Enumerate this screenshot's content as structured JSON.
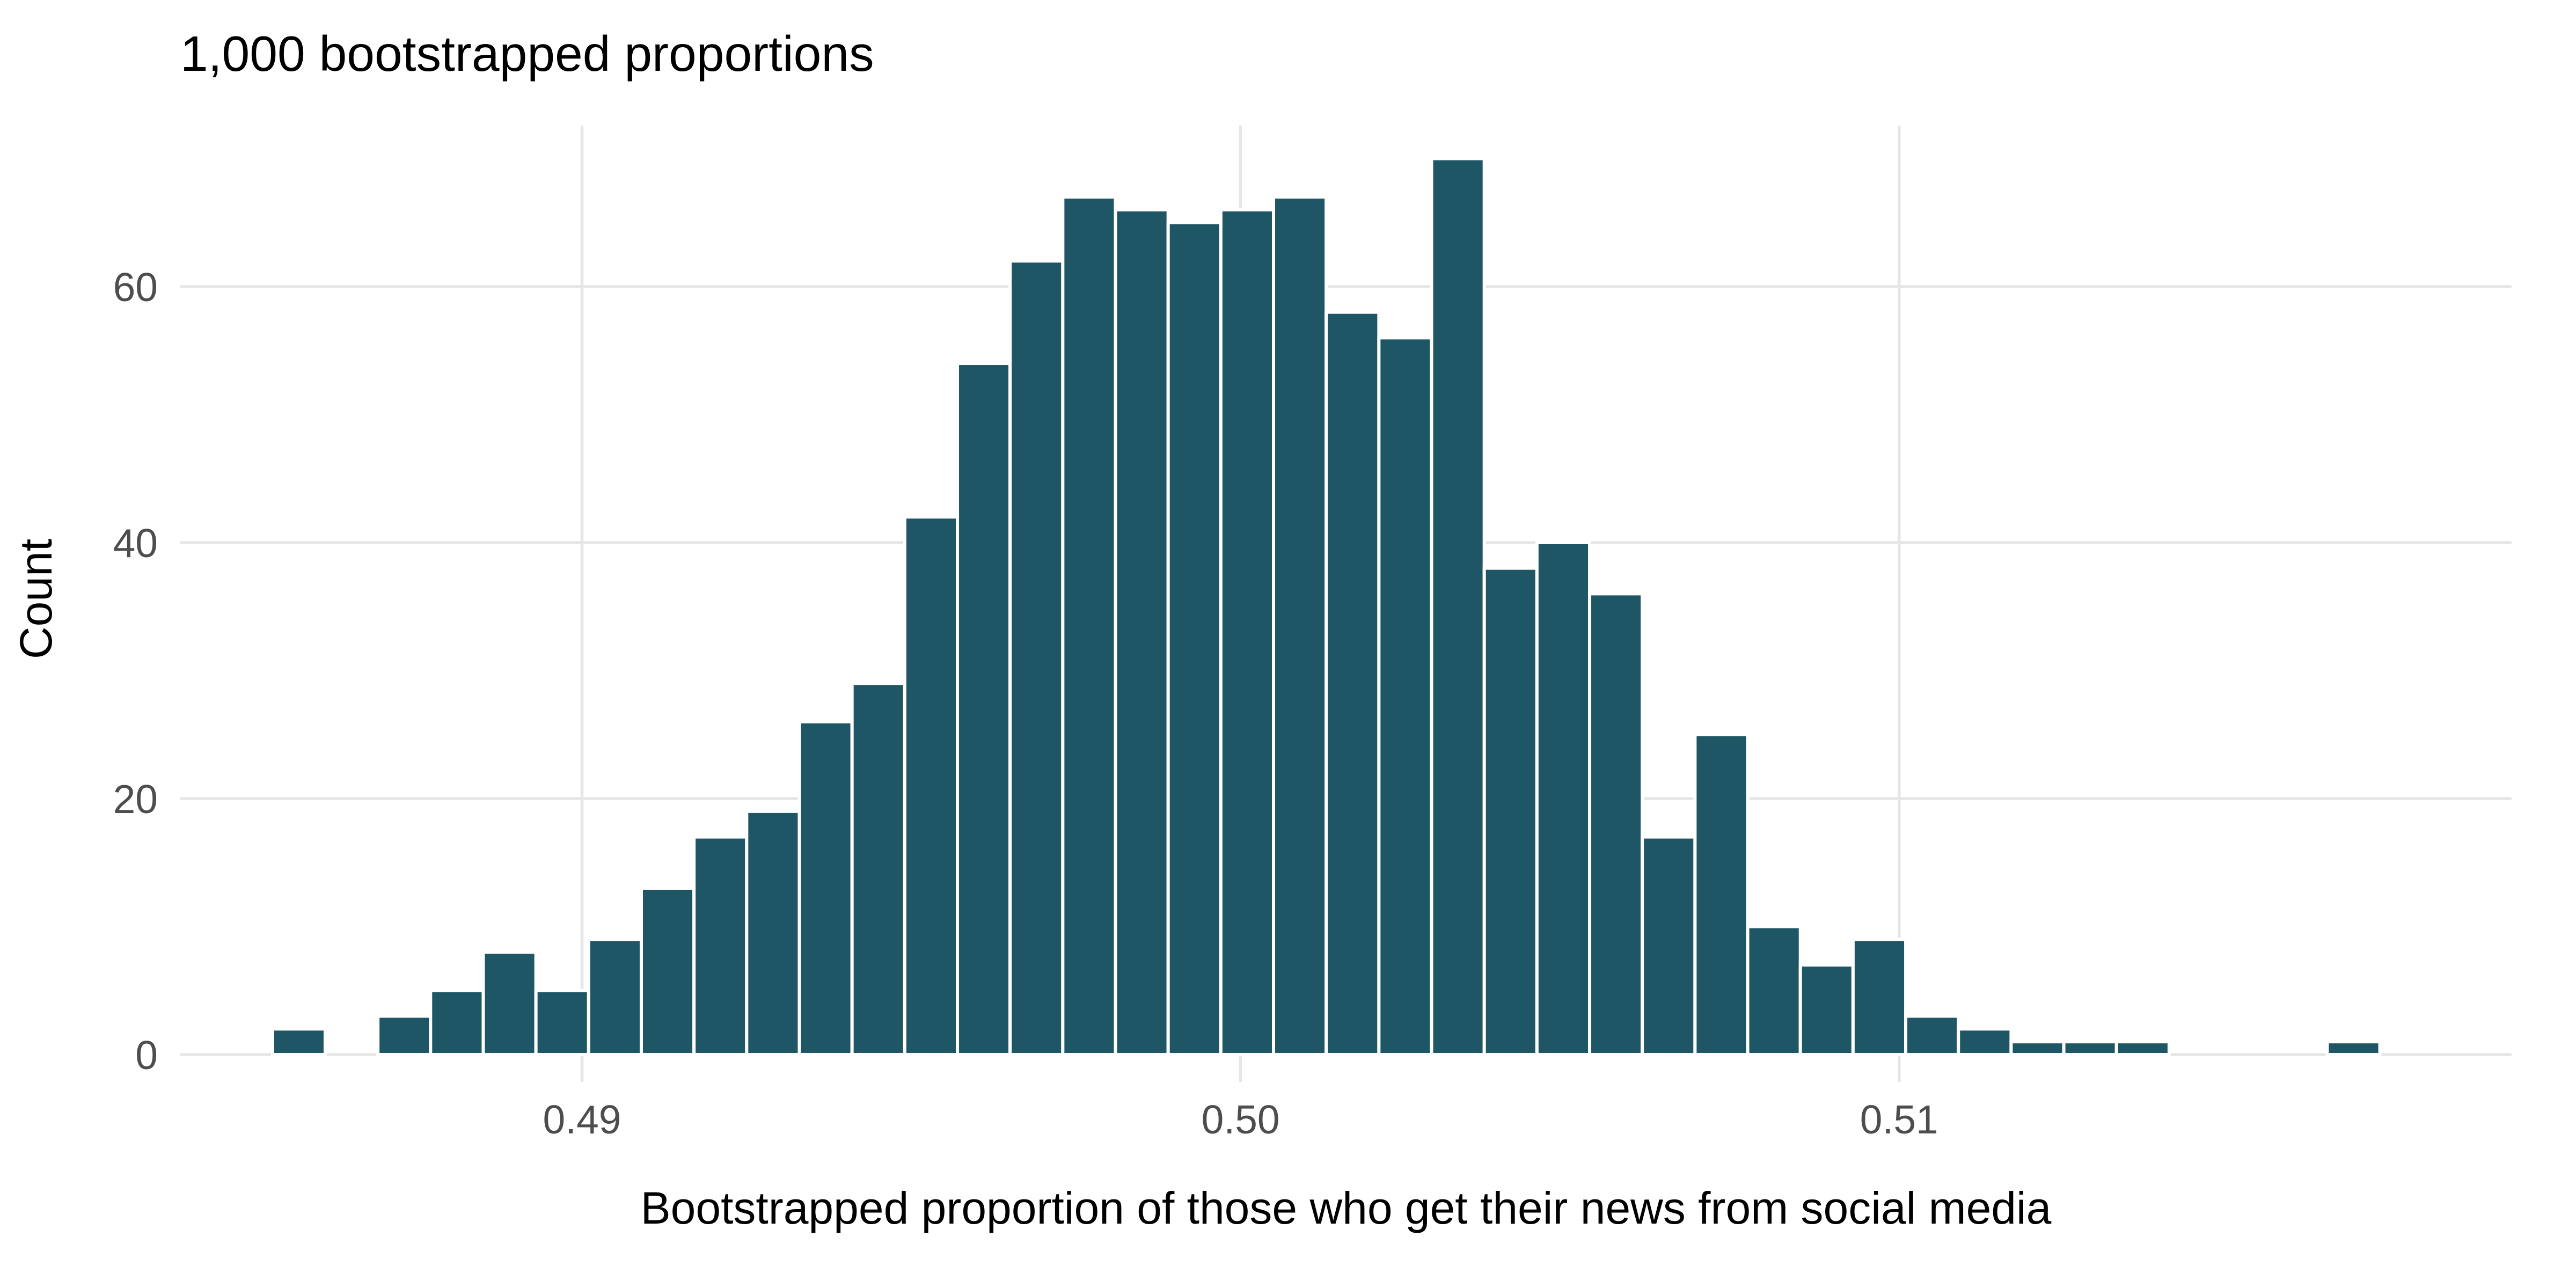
{
  "chart_data": {
    "type": "bar",
    "subtype": "histogram",
    "title": "1,000 bootstrapped proportions",
    "xlabel": "Bootstrapped proportion of those who get their news from social media",
    "ylabel": "Count",
    "x_ticks": [
      0.49,
      0.5,
      0.51
    ],
    "x_tick_labels": [
      "0.49",
      "0.50",
      "0.51"
    ],
    "y_ticks": [
      0,
      20,
      40,
      60
    ],
    "y_tick_labels": [
      "0",
      "20",
      "40",
      "60"
    ],
    "xlim": [
      0.4839,
      0.5193
    ],
    "ylim": [
      0,
      72
    ],
    "binwidth": 0.0008,
    "total_count": 1000,
    "grid": "major",
    "legend": "none",
    "bar_color": "#1f5666",
    "bar_border_color": "#ffffff",
    "grid_color": "#e6e6e6",
    "tick_text_color": "#4d4d4d",
    "bins": [
      {
        "x": 0.4857,
        "count": 2
      },
      {
        "x": 0.4865,
        "count": 0
      },
      {
        "x": 0.4873,
        "count": 3
      },
      {
        "x": 0.4881,
        "count": 5
      },
      {
        "x": 0.4889,
        "count": 8
      },
      {
        "x": 0.4897,
        "count": 5
      },
      {
        "x": 0.4905,
        "count": 9
      },
      {
        "x": 0.4913,
        "count": 13
      },
      {
        "x": 0.4921,
        "count": 17
      },
      {
        "x": 0.4929,
        "count": 19
      },
      {
        "x": 0.4937,
        "count": 26
      },
      {
        "x": 0.4945,
        "count": 29
      },
      {
        "x": 0.4953,
        "count": 42
      },
      {
        "x": 0.4961,
        "count": 54
      },
      {
        "x": 0.4969,
        "count": 62
      },
      {
        "x": 0.4977,
        "count": 67
      },
      {
        "x": 0.4985,
        "count": 66
      },
      {
        "x": 0.4993,
        "count": 65
      },
      {
        "x": 0.5001,
        "count": 66
      },
      {
        "x": 0.5009,
        "count": 67
      },
      {
        "x": 0.5017,
        "count": 58
      },
      {
        "x": 0.5025,
        "count": 56
      },
      {
        "x": 0.5033,
        "count": 70
      },
      {
        "x": 0.5041,
        "count": 38
      },
      {
        "x": 0.5049,
        "count": 40
      },
      {
        "x": 0.5057,
        "count": 36
      },
      {
        "x": 0.5065,
        "count": 17
      },
      {
        "x": 0.5073,
        "count": 25
      },
      {
        "x": 0.5081,
        "count": 10
      },
      {
        "x": 0.5089,
        "count": 7
      },
      {
        "x": 0.5097,
        "count": 9
      },
      {
        "x": 0.5105,
        "count": 3
      },
      {
        "x": 0.5113,
        "count": 2
      },
      {
        "x": 0.5121,
        "count": 1
      },
      {
        "x": 0.5129,
        "count": 1
      },
      {
        "x": 0.5137,
        "count": 1
      },
      {
        "x": 0.5145,
        "count": 0
      },
      {
        "x": 0.5153,
        "count": 0
      },
      {
        "x": 0.5161,
        "count": 0
      },
      {
        "x": 0.5169,
        "count": 1
      }
    ]
  }
}
